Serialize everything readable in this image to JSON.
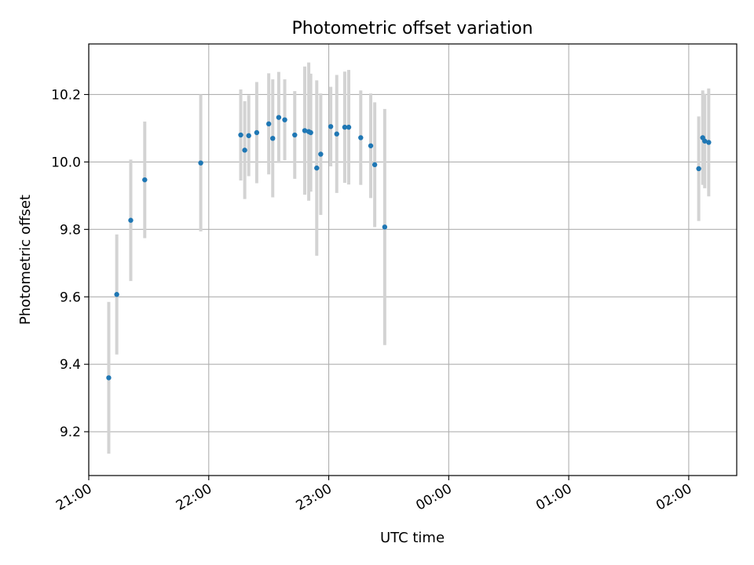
{
  "chart_data": {
    "type": "scatter",
    "title": "Photometric offset variation",
    "xlabel": "UTC time",
    "ylabel": "Photometric offset",
    "x_ticks": [
      "21:00",
      "22:00",
      "23:00",
      "00:00",
      "01:00",
      "02:00"
    ],
    "y_ticks": [
      "9.2",
      "9.4",
      "9.6",
      "9.8",
      "10.0",
      "10.2"
    ],
    "x_axis": "time (HH:MM UTC), 21:00 to 02:24",
    "ylim": [
      9.07,
      10.35
    ],
    "grid": true,
    "colors": {
      "points": "#1f77b4",
      "errorbars": "#d3d3d3",
      "grid": "#b0b0b0"
    },
    "series": [
      {
        "points": [
          {
            "t": "21:10",
            "y": 9.36,
            "err": 0.225
          },
          {
            "t": "21:14",
            "y": 9.607,
            "err": 0.178
          },
          {
            "t": "21:21",
            "y": 9.827,
            "err": 0.18
          },
          {
            "t": "21:28",
            "y": 9.947,
            "err": 0.173
          },
          {
            "t": "21:56",
            "y": 9.997,
            "err": 0.203
          },
          {
            "t": "22:16",
            "y": 10.08,
            "err": 0.135
          },
          {
            "t": "22:18",
            "y": 10.035,
            "err": 0.145
          },
          {
            "t": "22:20",
            "y": 10.078,
            "err": 0.12
          },
          {
            "t": "22:24",
            "y": 10.087,
            "err": 0.15
          },
          {
            "t": "22:30",
            "y": 10.113,
            "err": 0.15
          },
          {
            "t": "22:32",
            "y": 10.07,
            "err": 0.175
          },
          {
            "t": "22:35",
            "y": 10.132,
            "err": 0.135
          },
          {
            "t": "22:38",
            "y": 10.125,
            "err": 0.12
          },
          {
            "t": "22:43",
            "y": 10.08,
            "err": 0.13
          },
          {
            "t": "22:48",
            "y": 10.093,
            "err": 0.19
          },
          {
            "t": "22:50",
            "y": 10.09,
            "err": 0.205
          },
          {
            "t": "22:51",
            "y": 10.087,
            "err": 0.175
          },
          {
            "t": "22:54",
            "y": 9.982,
            "err": 0.26
          },
          {
            "t": "22:56",
            "y": 10.023,
            "err": 0.18
          },
          {
            "t": "23:01",
            "y": 10.105,
            "err": 0.118
          },
          {
            "t": "23:04",
            "y": 10.083,
            "err": 0.175
          },
          {
            "t": "23:08",
            "y": 10.103,
            "err": 0.165
          },
          {
            "t": "23:10",
            "y": 10.103,
            "err": 0.17
          },
          {
            "t": "23:16",
            "y": 10.072,
            "err": 0.14
          },
          {
            "t": "23:21",
            "y": 10.048,
            "err": 0.155
          },
          {
            "t": "23:23",
            "y": 9.992,
            "err": 0.185
          },
          {
            "t": "23:28",
            "y": 9.807,
            "err": 0.35
          },
          {
            "t": "02:05",
            "y": 9.98,
            "err": 0.155
          },
          {
            "t": "02:07",
            "y": 10.072,
            "err": 0.14
          },
          {
            "t": "02:08",
            "y": 10.062,
            "err": 0.14
          },
          {
            "t": "02:10",
            "y": 10.058,
            "err": 0.16
          }
        ]
      }
    ]
  }
}
